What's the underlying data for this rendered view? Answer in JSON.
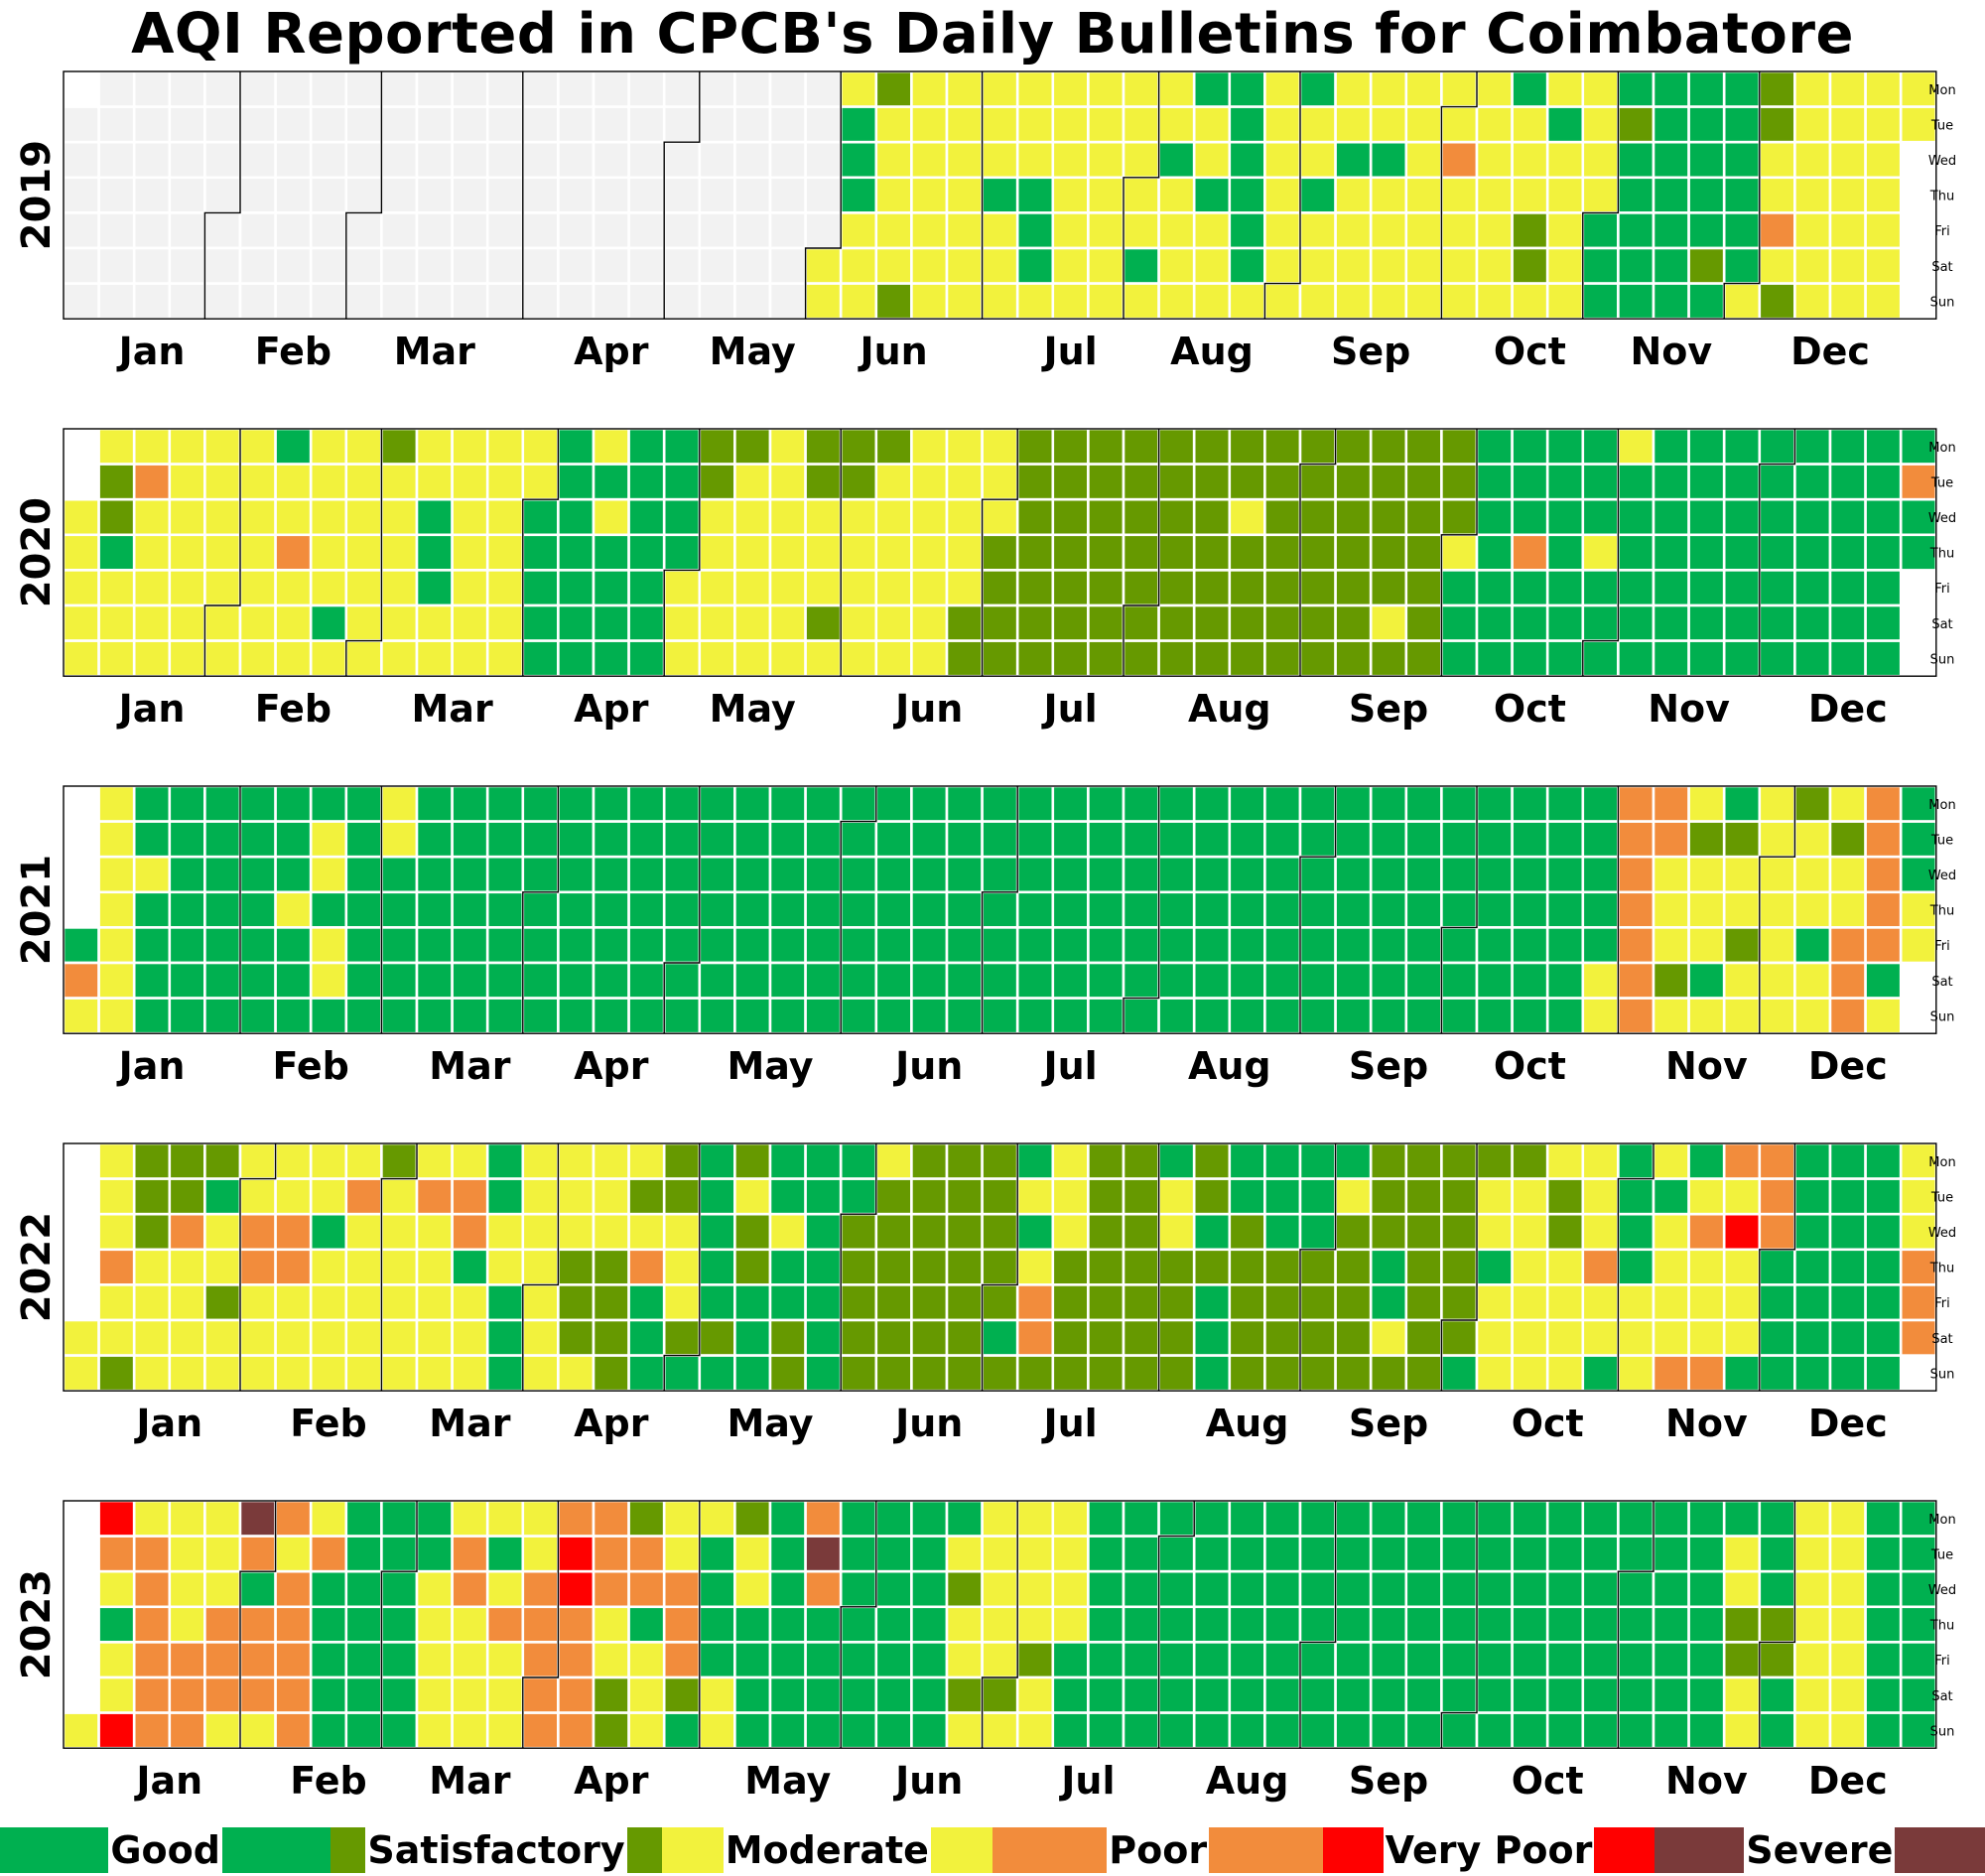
{
  "chart_data": {
    "type": "heatmap",
    "title": "AQI Reported in CPCB's Daily Bulletins for Coimbatore",
    "years": [
      2019,
      2020,
      2021,
      2022,
      2023
    ],
    "weekdays": [
      "Mon",
      "Tue",
      "Wed",
      "Thu",
      "Fri",
      "Sat",
      "Sun"
    ],
    "months": [
      "Jan",
      "Feb",
      "Mar",
      "Apr",
      "May",
      "Jun",
      "Jul",
      "Aug",
      "Sep",
      "Oct",
      "Nov",
      "Dec"
    ],
    "no_data_color": "#f2f2f2",
    "categories": [
      {
        "label": "Good",
        "code": "G",
        "color": "#00b050"
      },
      {
        "label": "Satisfactory",
        "code": "S",
        "color": "#669900"
      },
      {
        "label": "Moderate",
        "code": "M",
        "color": "#f2f23d"
      },
      {
        "label": "Poor",
        "code": "P",
        "color": "#f28c3c"
      },
      {
        "label": "Very Poor",
        "code": "V",
        "color": "#ff0000"
      },
      {
        "label": "Severe",
        "code": "X",
        "color": "#7a3a3a"
      }
    ],
    "default_category_by_month": {
      "2019": [
        "",
        "",
        "",
        "",
        "",
        "M",
        "M",
        "M",
        "M",
        "M",
        "G",
        "M"
      ],
      "2020": [
        "M",
        "M",
        "M",
        "G",
        "M",
        "M",
        "S",
        "S",
        "S",
        "G",
        "G",
        "G"
      ],
      "2021": [
        "G",
        "G",
        "G",
        "G",
        "G",
        "G",
        "G",
        "G",
        "G",
        "G",
        "M",
        "M"
      ],
      "2022": [
        "M",
        "M",
        "M",
        "M",
        "G",
        "S",
        "S",
        "S",
        "S",
        "M",
        "M",
        "G"
      ],
      "2023": [
        "P",
        "P",
        "M",
        "P",
        "G",
        "G",
        "G",
        "G",
        "G",
        "G",
        "G",
        "M"
      ]
    },
    "daily_overrides": {
      "2019": {
        "06-04": "G",
        "06-05": "G",
        "06-06": "G",
        "06-10": "S",
        "06-16": "S",
        "07-04": "G",
        "07-11": "G",
        "07-12": "G",
        "07-13": "G",
        "08-03": "G",
        "08-07": "G",
        "08-12": "G",
        "08-15": "G",
        "08-19": "G",
        "08-20": "G",
        "08-21": "G",
        "08-22": "G",
        "08-23": "G",
        "08-24": "G",
        "09-02": "G",
        "09-05": "G",
        "09-11": "G",
        "09-18": "G",
        "10-02": "P",
        "10-14": "G",
        "10-18": "S",
        "10-19": "S",
        "10-22": "G",
        "11-05": "S",
        "11-23": "S",
        "12-02": "S",
        "12-03": "S",
        "12-06": "P",
        "12-08": "S"
      },
      "2020": {
        "01-07": "S",
        "01-08": "S",
        "01-14": "P",
        "01-09": "G",
        "02-10": "G",
        "02-13": "P",
        "02-22": "G",
        "03-02": "S",
        "03-11": "G",
        "03-12": "G",
        "03-13": "G",
        "04-13": "M",
        "04-15": "M",
        "05-04": "S",
        "05-05": "S",
        "05-11": "S",
        "05-25": "S",
        "05-26": "S",
        "05-30": "S",
        "06-01": "S",
        "06-02": "S",
        "06-08": "S",
        "06-27": "S",
        "06-28": "S",
        "07-01": "M",
        "08-19": "M",
        "09-19": "M",
        "10-01": "M",
        "10-15": "P",
        "10-29": "M",
        "11-02": "M",
        "12-29": "P"
      },
      "2021": {
        "01-02": "P",
        "01-03": "M",
        "01-04": "M",
        "01-05": "M",
        "01-06": "M",
        "01-07": "M",
        "01-08": "M",
        "01-09": "M",
        "01-10": "M",
        "01-13": "M",
        "02-16": "M",
        "02-17": "M",
        "02-11": "M",
        "02-19": "M",
        "02-20": "M",
        "03-01": "M",
        "03-02": "M",
        "10-30": "M",
        "10-31": "M",
        "11-01": "P",
        "11-02": "P",
        "11-03": "P",
        "11-04": "P",
        "11-05": "P",
        "11-06": "P",
        "11-07": "P",
        "11-08": "P",
        "11-09": "P",
        "11-16": "S",
        "11-23": "S",
        "11-13": "S",
        "11-22": "G",
        "11-20": "G",
        "11-26": "S",
        "12-06": "S",
        "12-10": "G",
        "12-14": "S",
        "12-17": "P",
        "12-18": "P",
        "12-19": "P",
        "12-20": "P",
        "12-21": "P",
        "12-22": "P",
        "12-23": "P",
        "12-24": "P",
        "12-25": "G",
        "12-27": "G",
        "12-28": "G",
        "12-29": "G",
        "12-30": "M",
        "12-31": "M"
      },
      "2022": {
        "01-06": "P",
        "01-09": "S",
        "01-10": "S",
        "01-11": "S",
        "01-12": "S",
        "01-17": "S",
        "01-18": "S",
        "01-19": "P",
        "01-24": "S",
        "01-25": "G",
        "01-28": "S",
        "02-02": "P",
        "02-03": "P",
        "02-09": "P",
        "02-10": "P",
        "02-16": "G",
        "02-22": "P",
        "02-28": "S",
        "03-08": "P",
        "03-15": "P",
        "03-16": "P",
        "03-17": "G",
        "03-21": "G",
        "03-22": "G",
        "03-25": "G",
        "03-26": "G",
        "03-27": "G",
        "04-07": "S",
        "04-08": "S",
        "04-09": "S",
        "04-14": "S",
        "04-15": "S",
        "04-16": "S",
        "04-17": "S",
        "04-19": "S",
        "04-21": "P",
        "04-22": "G",
        "04-23": "G",
        "04-24": "G",
        "04-25": "S",
        "04-26": "S",
        "04-27": "M",
        "04-28": "M",
        "04-29": "M",
        "04-30": "S",
        "05-01": "G",
        "05-07": "S",
        "05-09": "S",
        "05-10": "M",
        "05-11": "S",
        "05-12": "S",
        "05-18": "M",
        "05-21": "S",
        "05-22": "S",
        "05-19": "G",
        "05-20": "G",
        "06-06": "M",
        "07-02": "G",
        "07-04": "G",
        "07-05": "M",
        "07-06": "G",
        "07-07": "M",
        "07-08": "P",
        "07-09": "P",
        "07-10": "S",
        "07-11": "M",
        "07-12": "M",
        "07-13": "M",
        "08-01": "G",
        "08-02": "M",
        "08-03": "M",
        "08-08": "S",
        "08-10": "G",
        "08-11": "S",
        "08-12": "G",
        "08-13": "G",
        "08-14": "G",
        "08-15": "G",
        "08-16": "G",
        "08-22": "G",
        "08-23": "G",
        "08-24": "G",
        "08-29": "G",
        "08-30": "G",
        "08-31": "G",
        "09-05": "G",
        "09-06": "M",
        "09-15": "G",
        "09-16": "G",
        "09-17": "M",
        "09-25": "S",
        "10-01": "S",
        "10-02": "G",
        "10-03": "S",
        "10-06": "G",
        "10-10": "S",
        "10-17": "M",
        "10-18": "S",
        "10-19": "S",
        "10-20": "M",
        "10-24": "M",
        "10-27": "P",
        "10-30": "G",
        "10-31": "G",
        "11-01": "G",
        "11-02": "G",
        "11-03": "G",
        "11-06": "M",
        "11-08": "G",
        "11-13": "P",
        "11-14": "G",
        "11-15": "M",
        "11-16": "P",
        "11-20": "P",
        "11-21": "P",
        "11-22": "M",
        "11-23": "V",
        "11-27": "G",
        "11-28": "P",
        "11-29": "P",
        "11-30": "P",
        "12-26": "M",
        "12-27": "M",
        "12-28": "M",
        "12-29": "P",
        "12-30": "P",
        "12-31": "P"
      },
      "2023": {
        "01-01": "M",
        "01-02": "V",
        "01-03": "P",
        "01-04": "M",
        "01-05": "G",
        "01-06": "M",
        "01-07": "M",
        "01-08": "V",
        "01-09": "M",
        "01-10": "P",
        "01-11": "P",
        "01-12": "P",
        "01-13": "P",
        "01-14": "P",
        "01-16": "M",
        "01-17": "M",
        "01-18": "M",
        "01-19": "M",
        "01-20": "P",
        "01-21": "P",
        "01-22": "P",
        "01-23": "M",
        "01-24": "M",
        "01-25": "M",
        "01-26": "P",
        "01-27": "P",
        "01-28": "P",
        "01-29": "M",
        "01-30": "X",
        "01-31": "P",
        "02-01": "G",
        "02-05": "M",
        "02-06": "P",
        "02-07": "M",
        "02-13": "M",
        "02-14": "P",
        "02-15": "G",
        "02-16": "G",
        "02-17": "G",
        "02-18": "G",
        "02-19": "G",
        "02-20": "G",
        "02-21": "G",
        "02-22": "G",
        "02-23": "G",
        "02-24": "G",
        "02-25": "G",
        "02-26": "G",
        "02-27": "G",
        "02-28": "G",
        "03-01": "G",
        "03-02": "G",
        "03-03": "G",
        "03-04": "G",
        "03-05": "G",
        "03-06": "G",
        "03-07": "G",
        "03-14": "P",
        "03-15": "P",
        "03-21": "G",
        "03-22": "M",
        "03-23": "P",
        "03-28": "M",
        "03-29": "P",
        "03-30": "P",
        "03-31": "P",
        "04-01": "P",
        "04-04": "V",
        "04-05": "V",
        "04-09": "P",
        "04-10": "P",
        "04-11": "P",
        "04-12": "P",
        "04-13": "M",
        "04-14": "M",
        "04-15": "S",
        "04-16": "S",
        "04-17": "S",
        "04-18": "P",
        "04-19": "P",
        "04-20": "G",
        "04-21": "M",
        "04-22": "M",
        "04-23": "M",
        "04-24": "M",
        "04-25": "M",
        "04-26": "P",
        "04-27": "P",
        "04-28": "P",
        "04-29": "S",
        "04-30": "G",
        "05-01": "M",
        "05-06": "M",
        "05-07": "M",
        "05-08": "S",
        "05-09": "M",
        "05-10": "M",
        "05-22": "P",
        "05-23": "X",
        "05-24": "P",
        "06-20": "M",
        "06-21": "S",
        "06-22": "M",
        "06-23": "M",
        "06-24": "S",
        "06-25": "M",
        "06-26": "M",
        "06-27": "M",
        "06-28": "M",
        "06-29": "M",
        "06-30": "M",
        "07-01": "S",
        "07-02": "M",
        "07-03": "M",
        "07-04": "M",
        "07-05": "M",
        "07-06": "M",
        "07-07": "S",
        "07-08": "M",
        "07-09": "M",
        "07-10": "M",
        "07-11": "M",
        "07-12": "M",
        "07-13": "M",
        "11-21": "M",
        "11-22": "M",
        "11-23": "S",
        "11-24": "S",
        "11-25": "M",
        "11-26": "M",
        "11-27": "G",
        "11-28": "G",
        "11-29": "G",
        "11-30": "S",
        "12-01": "S",
        "12-02": "G",
        "12-03": "G",
        "12-04": "M",
        "12-18": "G",
        "12-19": "G",
        "12-20": "G",
        "12-21": "G",
        "12-22": "G",
        "12-23": "G",
        "12-24": "G",
        "12-25": "G",
        "12-26": "G",
        "12-27": "G",
        "12-28": "G",
        "12-29": "G",
        "12-30": "G",
        "12-31": "G"
      }
    },
    "legend_placement": "bottom"
  }
}
